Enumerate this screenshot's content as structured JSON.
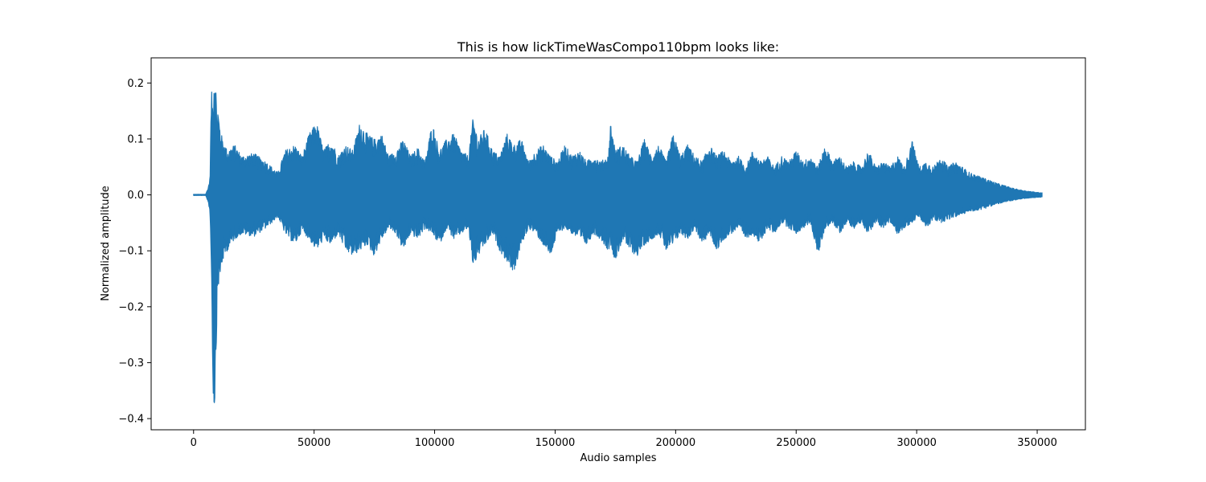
{
  "chart_data": {
    "type": "line",
    "title": "This is how lickTimeWasCompo110bpm looks like:",
    "xlabel": "Audio samples",
    "ylabel": "Normalized amplitude",
    "xlim": [
      -17600,
      370000
    ],
    "ylim": [
      -0.42,
      0.245
    ],
    "xticks": [
      {
        "value": 0,
        "label": "0"
      },
      {
        "value": 50000,
        "label": "50000"
      },
      {
        "value": 100000,
        "label": "100000"
      },
      {
        "value": 150000,
        "label": "150000"
      },
      {
        "value": 200000,
        "label": "200000"
      },
      {
        "value": 250000,
        "label": "250000"
      },
      {
        "value": 300000,
        "label": "300000"
      },
      {
        "value": 350000,
        "label": "350000"
      }
    ],
    "yticks": [
      {
        "value": 0.2,
        "label": "0.2"
      },
      {
        "value": 0.1,
        "label": "0.1"
      },
      {
        "value": 0.0,
        "label": "0.0"
      },
      {
        "value": -0.1,
        "label": "−0.1"
      },
      {
        "value": -0.2,
        "label": "−0.2"
      },
      {
        "value": -0.3,
        "label": "−0.3"
      },
      {
        "value": -0.4,
        "label": "−0.4"
      }
    ],
    "grid": false,
    "series": [
      {
        "color": "#1f77b4",
        "envelope": {
          "x": [
            0,
            5000,
            6000,
            6800,
            7400,
            8000,
            8400,
            8800,
            9200,
            9600,
            10000,
            11000,
            12000,
            14000,
            17000,
            20000,
            25000,
            30000,
            35000,
            38000,
            42000,
            45000,
            48000,
            51000,
            54000,
            57000,
            60000,
            63000,
            66000,
            69000,
            72000,
            75000,
            78000,
            81000,
            84000,
            87000,
            90000,
            93000,
            96000,
            99000,
            102000,
            105000,
            108000,
            111000,
            114000,
            116000,
            118000,
            121000,
            124000,
            127000,
            130000,
            133000,
            136000,
            139000,
            142000,
            145000,
            148000,
            151000,
            154000,
            157000,
            160000,
            163000,
            166000,
            169000,
            172000,
            173000,
            175000,
            178000,
            181000,
            184000,
            187000,
            190000,
            193000,
            196000,
            199000,
            202000,
            205000,
            208000,
            211000,
            214000,
            217000,
            220000,
            223000,
            226000,
            229000,
            232000,
            235000,
            238000,
            241000,
            244000,
            247000,
            250000,
            253000,
            256000,
            259000,
            262000,
            265000,
            268000,
            271000,
            274000,
            277000,
            280000,
            283000,
            286000,
            289000,
            292000,
            295000,
            298000,
            301000,
            304000,
            307000,
            310000,
            313000,
            316000,
            319000,
            322000,
            325000,
            328000,
            331000,
            334000,
            337000,
            340000,
            343000,
            346000,
            349000,
            352000
          ],
          "upper": [
            0.001,
            0.001,
            0.012,
            0.03,
            0.19,
            0.16,
            0.21,
            0.22,
            0.21,
            0.14,
            0.16,
            0.12,
            0.1,
            0.08,
            0.09,
            0.07,
            0.075,
            0.06,
            0.04,
            0.08,
            0.09,
            0.07,
            0.11,
            0.13,
            0.08,
            0.1,
            0.07,
            0.09,
            0.08,
            0.13,
            0.11,
            0.1,
            0.11,
            0.07,
            0.08,
            0.1,
            0.07,
            0.085,
            0.06,
            0.13,
            0.08,
            0.1,
            0.11,
            0.08,
            0.07,
            0.14,
            0.1,
            0.12,
            0.08,
            0.07,
            0.11,
            0.09,
            0.1,
            0.06,
            0.08,
            0.09,
            0.07,
            0.06,
            0.09,
            0.07,
            0.08,
            0.06,
            0.07,
            0.06,
            0.07,
            0.13,
            0.08,
            0.09,
            0.07,
            0.06,
            0.1,
            0.07,
            0.09,
            0.06,
            0.11,
            0.07,
            0.09,
            0.07,
            0.06,
            0.09,
            0.07,
            0.08,
            0.06,
            0.07,
            0.05,
            0.08,
            0.06,
            0.07,
            0.05,
            0.07,
            0.06,
            0.08,
            0.06,
            0.07,
            0.05,
            0.09,
            0.06,
            0.07,
            0.05,
            0.06,
            0.05,
            0.08,
            0.05,
            0.06,
            0.05,
            0.07,
            0.05,
            0.1,
            0.05,
            0.06,
            0.05,
            0.07,
            0.05,
            0.06,
            0.05,
            0.04,
            0.035,
            0.03,
            0.025,
            0.02,
            0.016,
            0.012,
            0.009,
            0.007,
            0.005,
            0.004
          ],
          "lower": [
            -0.001,
            -0.001,
            -0.012,
            -0.03,
            -0.13,
            -0.34,
            -0.39,
            -0.38,
            -0.3,
            -0.24,
            -0.17,
            -0.15,
            -0.12,
            -0.1,
            -0.08,
            -0.07,
            -0.075,
            -0.06,
            -0.04,
            -0.07,
            -0.09,
            -0.065,
            -0.08,
            -0.1,
            -0.08,
            -0.09,
            -0.07,
            -0.1,
            -0.11,
            -0.1,
            -0.09,
            -0.11,
            -0.08,
            -0.06,
            -0.07,
            -0.1,
            -0.07,
            -0.08,
            -0.06,
            -0.07,
            -0.09,
            -0.06,
            -0.08,
            -0.07,
            -0.06,
            -0.13,
            -0.11,
            -0.09,
            -0.07,
            -0.1,
            -0.12,
            -0.14,
            -0.09,
            -0.06,
            -0.07,
            -0.09,
            -0.11,
            -0.07,
            -0.06,
            -0.07,
            -0.08,
            -0.09,
            -0.07,
            -0.08,
            -0.1,
            -0.09,
            -0.12,
            -0.08,
            -0.1,
            -0.11,
            -0.09,
            -0.08,
            -0.07,
            -0.1,
            -0.09,
            -0.07,
            -0.08,
            -0.06,
            -0.09,
            -0.07,
            -0.1,
            -0.08,
            -0.07,
            -0.06,
            -0.08,
            -0.07,
            -0.09,
            -0.06,
            -0.07,
            -0.05,
            -0.06,
            -0.07,
            -0.06,
            -0.05,
            -0.11,
            -0.06,
            -0.05,
            -0.07,
            -0.05,
            -0.06,
            -0.05,
            -0.07,
            -0.05,
            -0.06,
            -0.05,
            -0.07,
            -0.06,
            -0.05,
            -0.04,
            -0.06,
            -0.045,
            -0.05,
            -0.045,
            -0.04,
            -0.035,
            -0.03,
            -0.028,
            -0.025,
            -0.02,
            -0.016,
            -0.013,
            -0.01,
            -0.008,
            -0.006,
            -0.005,
            -0.004
          ]
        }
      }
    ]
  }
}
